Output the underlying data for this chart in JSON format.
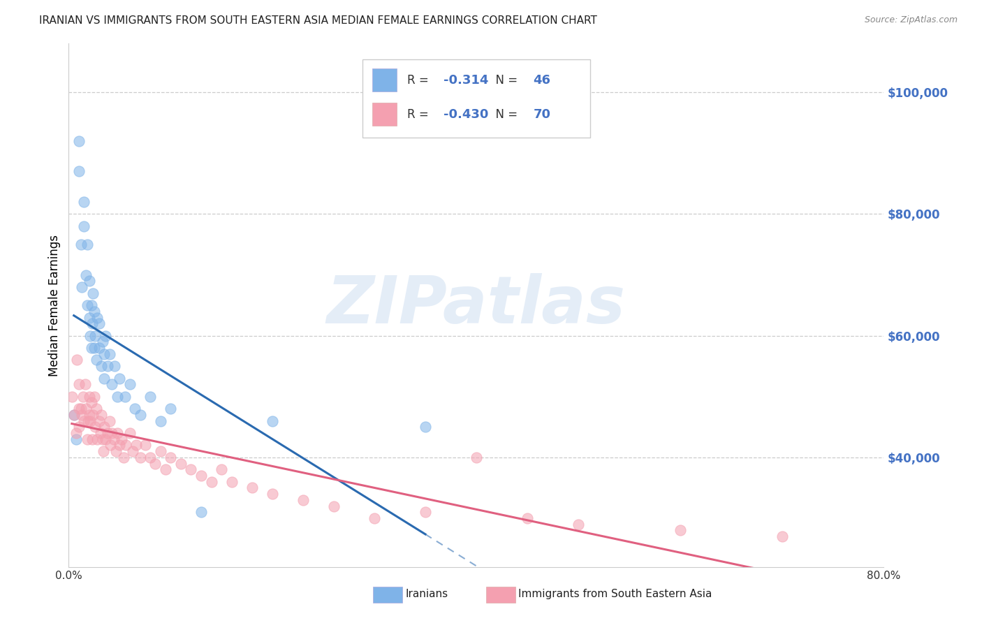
{
  "title": "IRANIAN VS IMMIGRANTS FROM SOUTH EASTERN ASIA MEDIAN FEMALE EARNINGS CORRELATION CHART",
  "source": "Source: ZipAtlas.com",
  "ylabel": "Median Female Earnings",
  "xlim": [
    0.0,
    0.8
  ],
  "ylim": [
    22000,
    108000
  ],
  "ytick_vals": [
    40000,
    60000,
    80000,
    100000
  ],
  "ytick_labels": [
    "$40,000",
    "$60,000",
    "$80,000",
    "$100,000"
  ],
  "xtick_vals": [
    0.0,
    0.1,
    0.2,
    0.3,
    0.4,
    0.5,
    0.6,
    0.7,
    0.8
  ],
  "xtick_labels": [
    "0.0%",
    "",
    "",
    "",
    "",
    "",
    "",
    "",
    "80.0%"
  ],
  "legend_label1": "Iranians",
  "legend_label2": "Immigrants from South Eastern Asia",
  "R1": -0.314,
  "N1": 46,
  "R2": -0.43,
  "N2": 70,
  "color_blue": "#7fb3e8",
  "color_blue_line": "#2a6ab0",
  "color_pink": "#f4a0b0",
  "color_pink_line": "#e06080",
  "color_axis_right": "#4472c4",
  "watermark_text": "ZIPatlas",
  "iranians_x": [
    0.005,
    0.007,
    0.01,
    0.01,
    0.012,
    0.013,
    0.015,
    0.015,
    0.017,
    0.018,
    0.018,
    0.02,
    0.02,
    0.021,
    0.022,
    0.022,
    0.023,
    0.024,
    0.025,
    0.025,
    0.026,
    0.027,
    0.028,
    0.03,
    0.03,
    0.032,
    0.033,
    0.035,
    0.035,
    0.036,
    0.038,
    0.04,
    0.042,
    0.045,
    0.048,
    0.05,
    0.055,
    0.06,
    0.065,
    0.07,
    0.08,
    0.09,
    0.1,
    0.13,
    0.2,
    0.35
  ],
  "iranians_y": [
    47000,
    43000,
    92000,
    87000,
    75000,
    68000,
    82000,
    78000,
    70000,
    65000,
    75000,
    63000,
    69000,
    60000,
    58000,
    65000,
    62000,
    67000,
    58000,
    64000,
    60000,
    56000,
    63000,
    58000,
    62000,
    55000,
    59000,
    57000,
    53000,
    60000,
    55000,
    57000,
    52000,
    55000,
    50000,
    53000,
    50000,
    52000,
    48000,
    47000,
    50000,
    46000,
    48000,
    31000,
    46000,
    45000
  ],
  "sea_x": [
    0.003,
    0.005,
    0.007,
    0.008,
    0.01,
    0.01,
    0.01,
    0.012,
    0.013,
    0.014,
    0.015,
    0.016,
    0.017,
    0.018,
    0.019,
    0.02,
    0.02,
    0.021,
    0.022,
    0.023,
    0.024,
    0.025,
    0.026,
    0.027,
    0.028,
    0.03,
    0.031,
    0.032,
    0.033,
    0.034,
    0.035,
    0.036,
    0.038,
    0.04,
    0.041,
    0.042,
    0.044,
    0.046,
    0.048,
    0.05,
    0.052,
    0.054,
    0.056,
    0.06,
    0.063,
    0.066,
    0.07,
    0.075,
    0.08,
    0.085,
    0.09,
    0.095,
    0.1,
    0.11,
    0.12,
    0.13,
    0.14,
    0.15,
    0.16,
    0.18,
    0.2,
    0.23,
    0.26,
    0.3,
    0.35,
    0.4,
    0.45,
    0.5,
    0.6,
    0.7
  ],
  "sea_y": [
    50000,
    47000,
    44000,
    56000,
    52000,
    48000,
    45000,
    48000,
    47000,
    50000,
    46000,
    52000,
    48000,
    43000,
    46000,
    50000,
    47000,
    46000,
    49000,
    43000,
    47000,
    50000,
    45000,
    48000,
    43000,
    46000,
    44000,
    47000,
    43000,
    41000,
    45000,
    43000,
    44000,
    46000,
    42000,
    44000,
    43000,
    41000,
    44000,
    42000,
    43000,
    40000,
    42000,
    44000,
    41000,
    42000,
    40000,
    42000,
    40000,
    39000,
    41000,
    38000,
    40000,
    39000,
    38000,
    37000,
    36000,
    38000,
    36000,
    35000,
    34000,
    33000,
    32000,
    30000,
    31000,
    40000,
    30000,
    29000,
    28000,
    27000
  ]
}
